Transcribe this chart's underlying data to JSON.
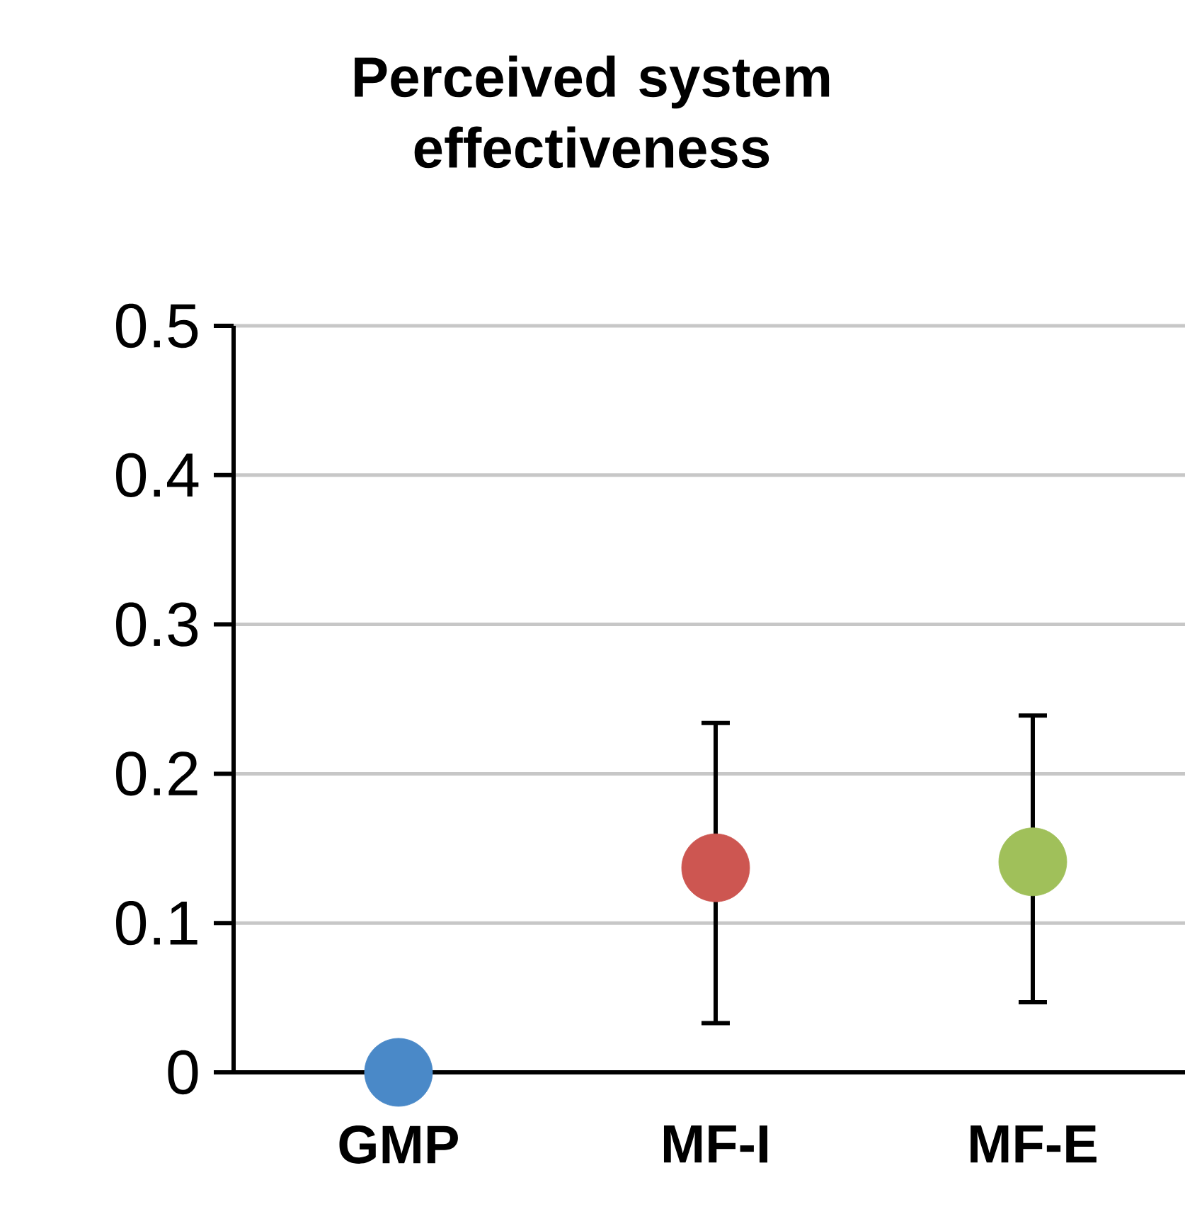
{
  "chart_data": {
    "type": "scatter",
    "title": "Perceived system effectiveness",
    "categories": [
      "GMP",
      "MF-I",
      "MF-E"
    ],
    "values": [
      0,
      0.137,
      0.141
    ],
    "colors": [
      "#4a89c8",
      "#cd5651",
      "#a0c05a"
    ],
    "errors": [
      null,
      [
        0.033,
        0.234
      ],
      [
        0.047,
        0.239
      ]
    ],
    "ylim": [
      0,
      0.5
    ],
    "yticks": [
      0,
      0.1,
      0.2,
      0.3,
      0.4,
      0.5
    ],
    "grid": "y"
  }
}
